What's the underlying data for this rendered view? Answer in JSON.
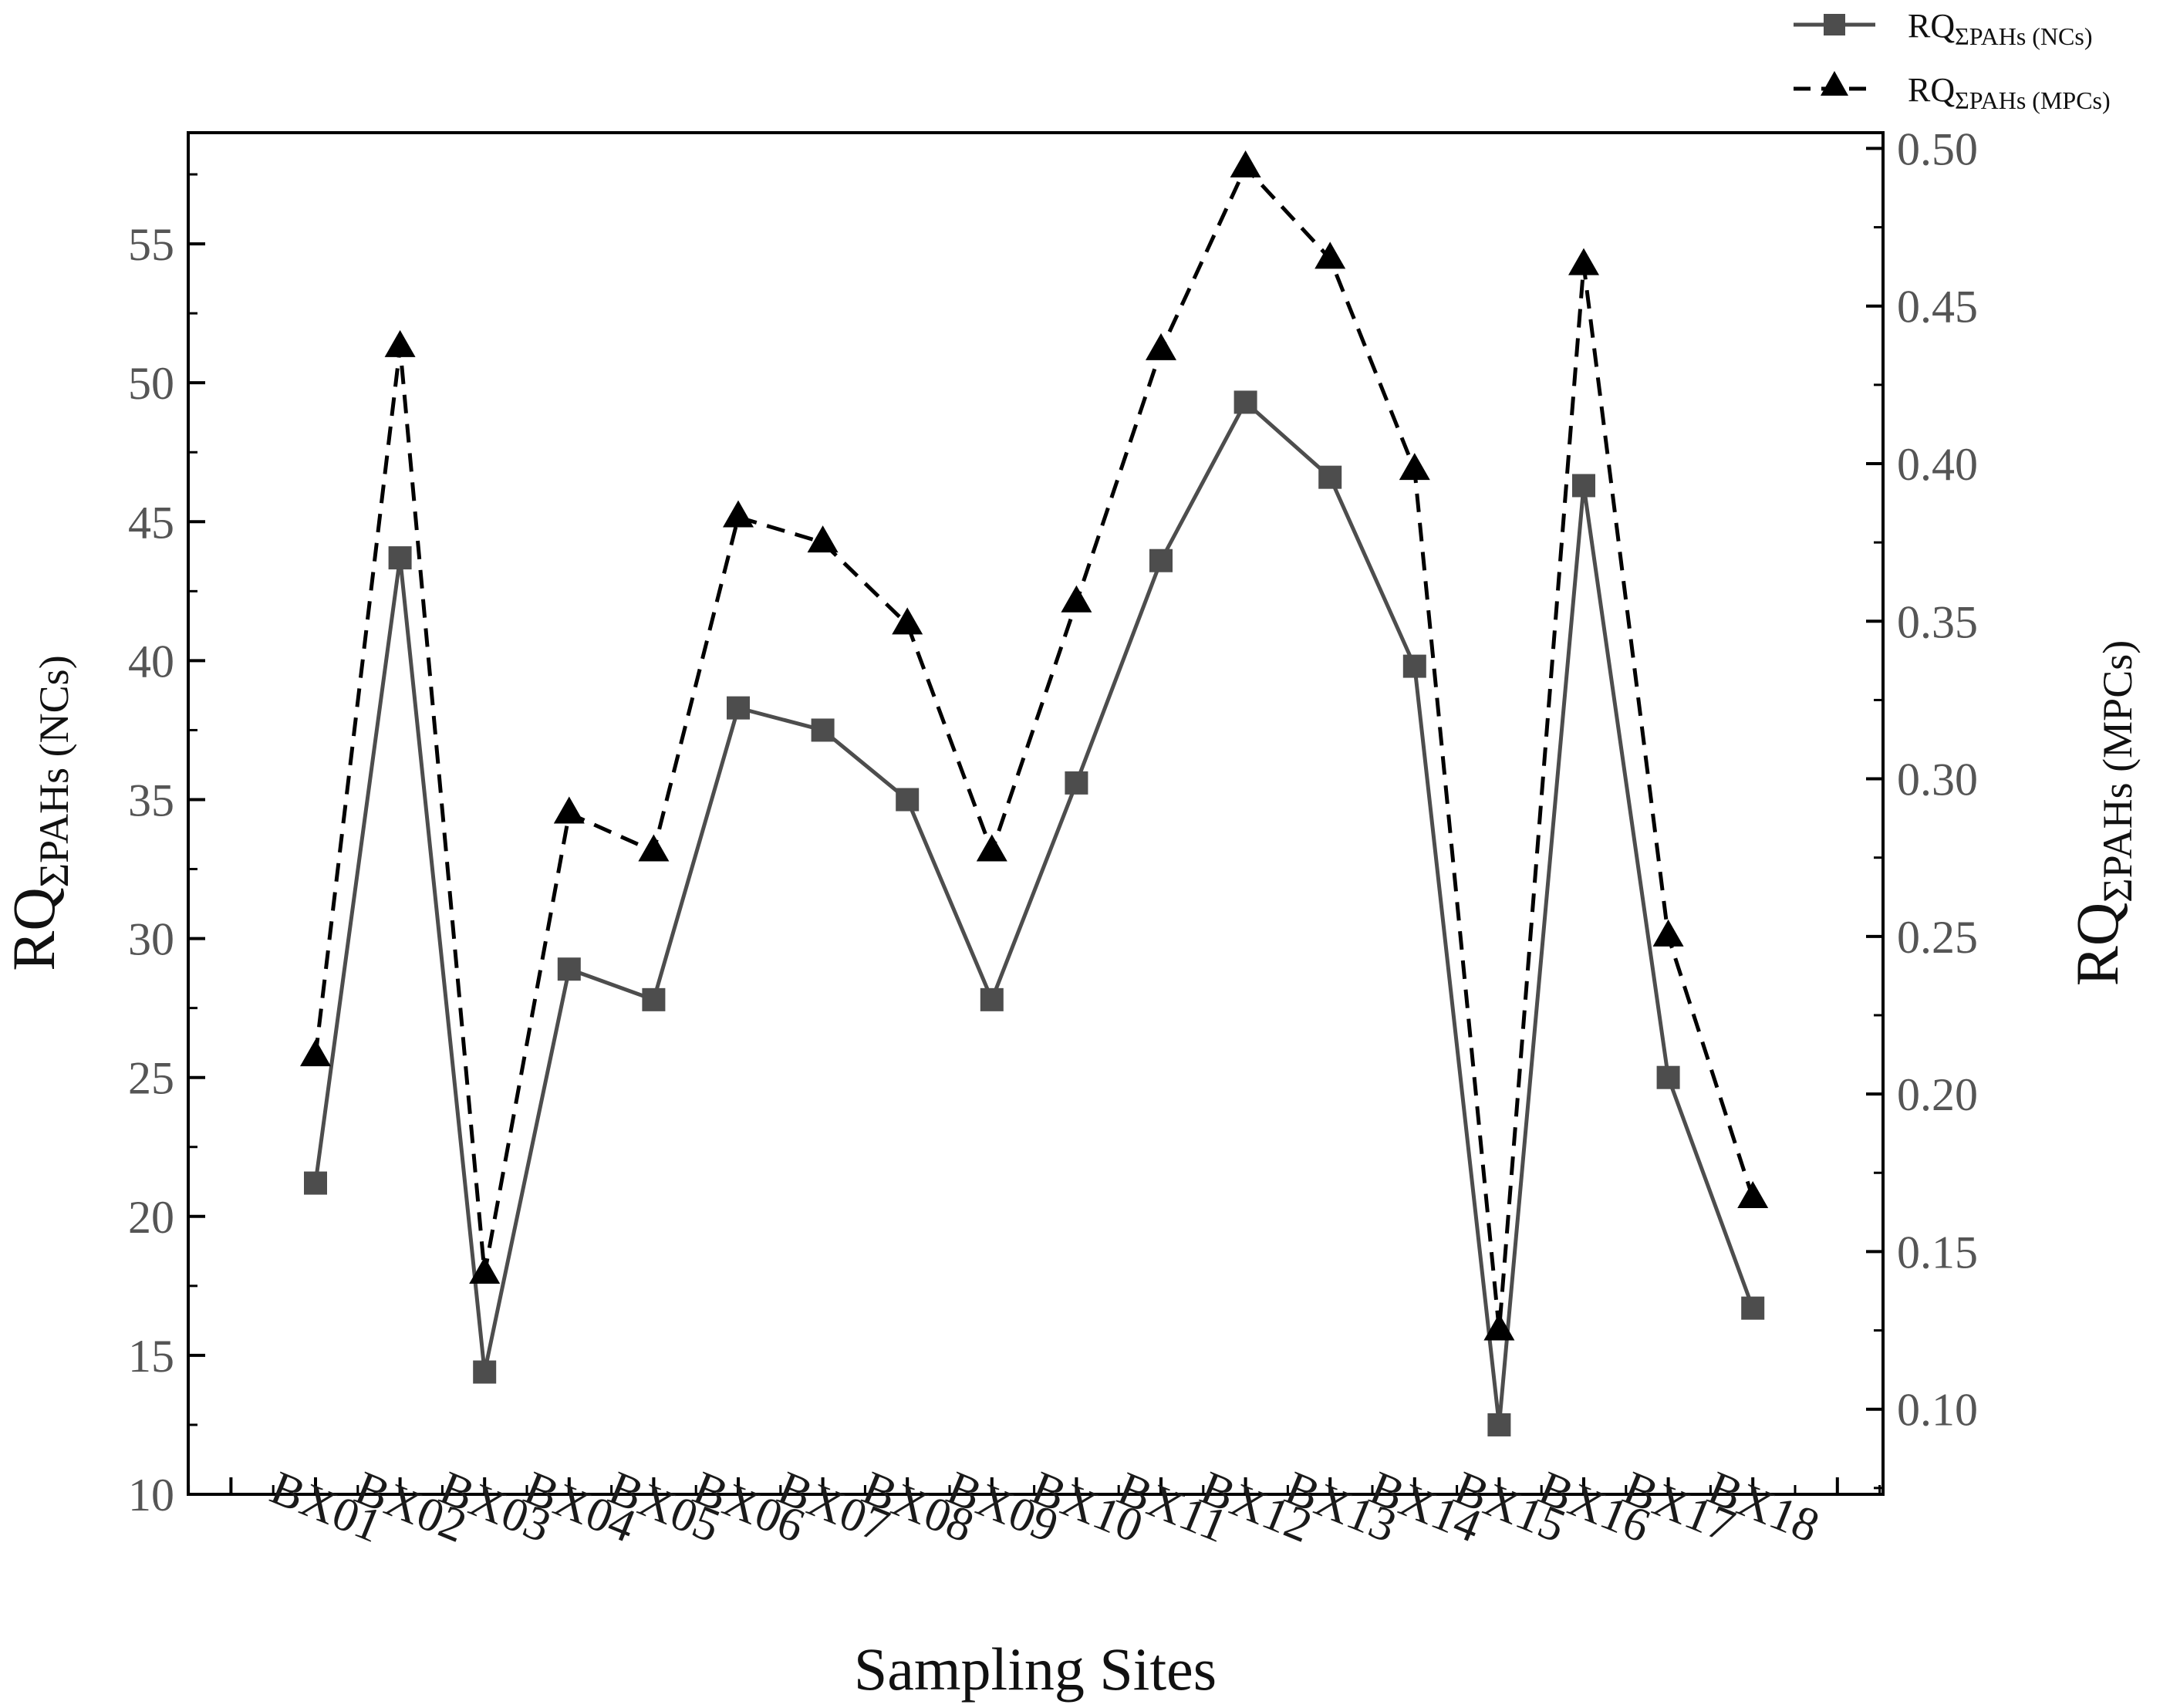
{
  "chart_data": {
    "type": "line",
    "xlabel": "Sampling Sites",
    "categories": [
      "BX01",
      "BX02",
      "BX03",
      "BX04",
      "BX05",
      "BX06",
      "BX07",
      "BX08",
      "BX09",
      "BX10",
      "BX11",
      "BX12",
      "BX13",
      "BX14",
      "BX15",
      "BX16",
      "BX17",
      "BX18"
    ],
    "y_left": {
      "label_main": "RQ",
      "label_sub": "ΣPAHs (NCs)",
      "range": [
        10,
        59
      ],
      "ticks": [
        10,
        15,
        20,
        25,
        30,
        35,
        40,
        45,
        50,
        55
      ],
      "tick_labels": [
        "10",
        "15",
        "20",
        "25",
        "30",
        "35",
        "40",
        "45",
        "50",
        "55"
      ]
    },
    "y_right": {
      "label_main": "RQ",
      "label_sub": "ΣPAHs (MPCs)",
      "range": [
        0.073,
        0.505
      ],
      "ticks": [
        0.1,
        0.15,
        0.2,
        0.25,
        0.3,
        0.35,
        0.4,
        0.45,
        0.5
      ],
      "tick_labels": [
        "0.10",
        "0.15",
        "0.20",
        "0.25",
        "0.30",
        "0.35",
        "0.40",
        "0.45",
        "0.50"
      ]
    },
    "series": [
      {
        "name_main": "RQ",
        "name_sub": "ΣPAHs (NCs)",
        "axis": "left",
        "marker": "square",
        "line": "solid",
        "color": "#4d4d4d",
        "values": [
          21.2,
          43.7,
          14.4,
          28.9,
          27.8,
          38.3,
          37.5,
          35.0,
          27.8,
          35.6,
          43.6,
          49.3,
          46.6,
          39.8,
          12.5,
          46.3,
          25.0,
          16.7
        ]
      },
      {
        "name_main": "RQ",
        "name_sub": "ΣPAHs (MPCs)",
        "axis": "right",
        "marker": "triangle",
        "line": "dashed",
        "color": "#000000",
        "values": [
          0.212,
          0.437,
          0.143,
          0.289,
          0.277,
          0.383,
          0.375,
          0.349,
          0.277,
          0.356,
          0.436,
          0.494,
          0.465,
          0.398,
          0.125,
          0.463,
          0.25,
          0.167
        ]
      }
    ],
    "grid": false,
    "legend_position": "top-right, outside plot"
  }
}
